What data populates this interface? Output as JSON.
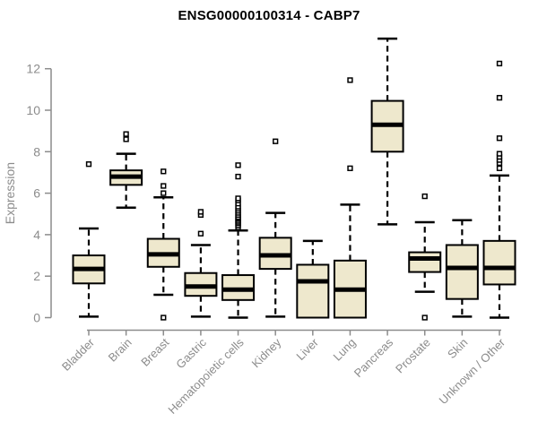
{
  "colors": {
    "title": "#000000",
    "axis": "#8c8c8c",
    "label": "#8c8c8c",
    "box_fill": "#EEE8CD",
    "box_stroke": "#000000",
    "median": "#000000",
    "outlier_fill": "#ffffff",
    "background": "#ffffff"
  },
  "chart_data": {
    "type": "boxplot",
    "title": "ENSG00000100314 - CABP7",
    "ylabel": "Expression",
    "xlabel": "",
    "ylim": [
      0,
      12
    ],
    "yticks": [
      0,
      2,
      4,
      6,
      8,
      10,
      12
    ],
    "grid": false,
    "legend": null,
    "categories": [
      "Bladder",
      "Brain",
      "Breast",
      "Gastric",
      "Hematopoietic cells",
      "Kidney",
      "Liver",
      "Lung",
      "Pancreas",
      "Prostate",
      "Skin",
      "Unknown / Other"
    ],
    "boxes": [
      {
        "category": "Bladder",
        "whisker_low": 0.05,
        "q1": 1.65,
        "median": 2.35,
        "q3": 3.0,
        "whisker_high": 4.3,
        "outliers": [
          7.4
        ]
      },
      {
        "category": "Brain",
        "whisker_low": 5.3,
        "q1": 6.4,
        "median": 6.8,
        "q3": 7.1,
        "whisker_high": 7.9,
        "outliers": [
          8.6,
          8.85
        ]
      },
      {
        "category": "Breast",
        "whisker_low": 1.1,
        "q1": 2.45,
        "median": 3.05,
        "q3": 3.8,
        "whisker_high": 5.8,
        "outliers": [
          0.0,
          6.0,
          6.35,
          7.05
        ]
      },
      {
        "category": "Gastric",
        "whisker_low": 0.05,
        "q1": 1.05,
        "median": 1.5,
        "q3": 2.15,
        "whisker_high": 3.5,
        "outliers": [
          4.05,
          4.95,
          5.1
        ]
      },
      {
        "category": "Hematopoietic cells",
        "whisker_low": 0.0,
        "q1": 0.85,
        "median": 1.35,
        "q3": 2.05,
        "whisker_high": 4.2,
        "outliers": [
          4.35,
          4.45,
          4.55,
          4.62,
          4.7,
          4.78,
          4.85,
          4.95,
          5.05,
          5.15,
          5.25,
          5.35,
          5.5,
          5.65,
          5.75,
          6.8,
          7.35
        ]
      },
      {
        "category": "Kidney",
        "whisker_low": 0.05,
        "q1": 2.35,
        "median": 3.0,
        "q3": 3.85,
        "whisker_high": 5.05,
        "outliers": [
          8.5
        ]
      },
      {
        "category": "Liver",
        "whisker_low": 0.0,
        "q1": 0.0,
        "median": 1.75,
        "q3": 2.55,
        "whisker_high": 3.7,
        "outliers": []
      },
      {
        "category": "Lung",
        "whisker_low": 0.0,
        "q1": 0.0,
        "median": 1.35,
        "q3": 2.75,
        "whisker_high": 5.45,
        "outliers": [
          7.2,
          11.45
        ]
      },
      {
        "category": "Pancreas",
        "whisker_low": 4.5,
        "q1": 8.0,
        "median": 9.3,
        "q3": 10.45,
        "whisker_high": 13.45,
        "outliers": []
      },
      {
        "category": "Prostate",
        "whisker_low": 1.25,
        "q1": 2.2,
        "median": 2.85,
        "q3": 3.15,
        "whisker_high": 4.6,
        "outliers": [
          0.0,
          5.85
        ]
      },
      {
        "category": "Skin",
        "whisker_low": 0.05,
        "q1": 0.9,
        "median": 2.4,
        "q3": 3.5,
        "whisker_high": 4.7,
        "outliers": []
      },
      {
        "category": "Unknown / Other",
        "whisker_low": 0.0,
        "q1": 1.6,
        "median": 2.4,
        "q3": 3.7,
        "whisker_high": 6.85,
        "outliers": [
          7.2,
          7.45,
          7.6,
          7.75,
          7.9,
          8.65,
          10.6,
          12.25
        ]
      }
    ]
  }
}
